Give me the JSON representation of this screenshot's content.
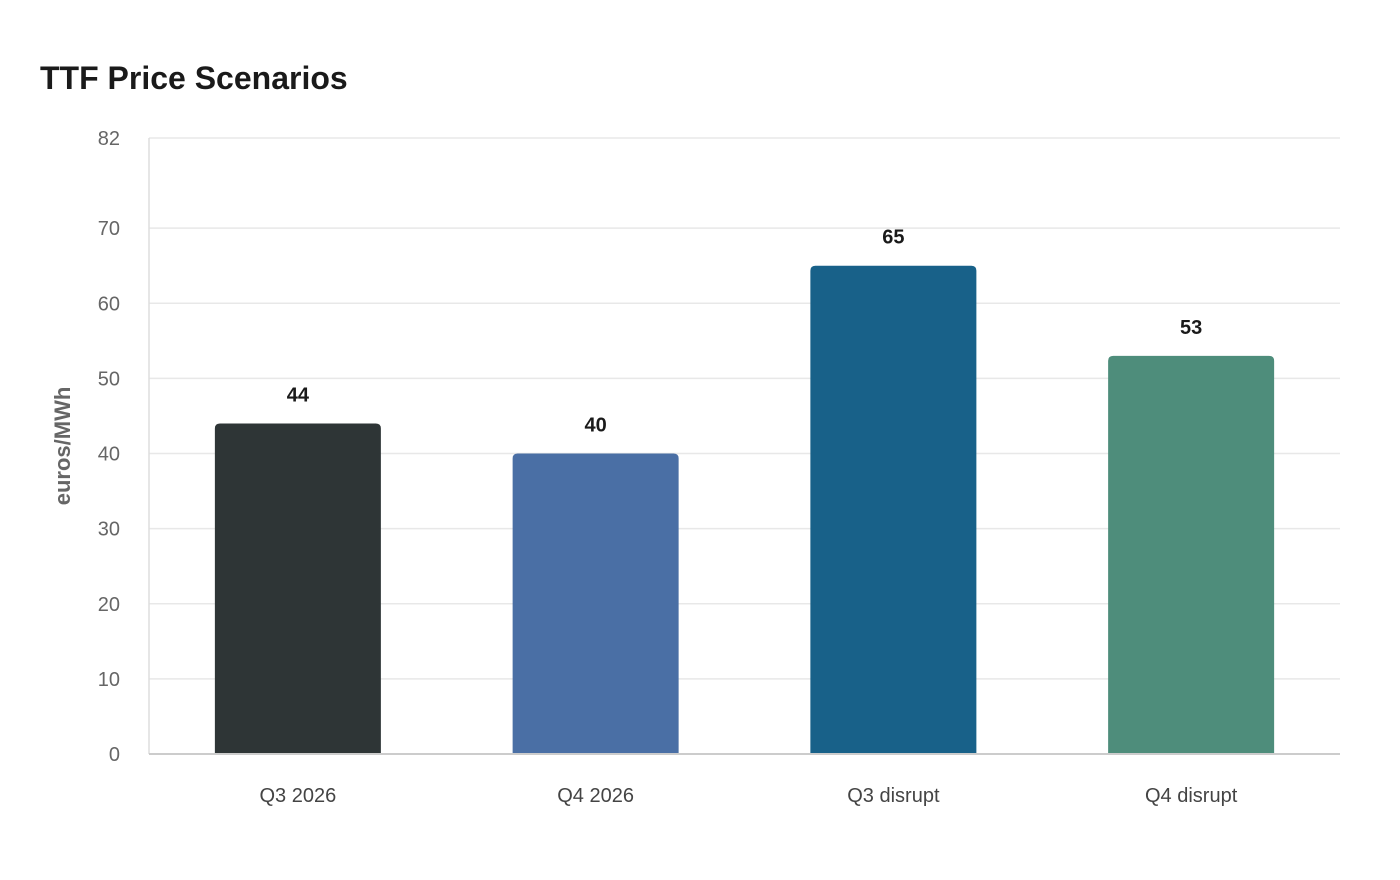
{
  "chart_data": {
    "type": "bar",
    "title": "TTF Price Scenarios",
    "xlabel": "",
    "ylabel": "euros/MWh",
    "categories": [
      "Q3 2026",
      "Q4 2026",
      "Q3 disrupt",
      "Q4 disrupt"
    ],
    "values": [
      44,
      40,
      65,
      53
    ],
    "colors": [
      "#2e3536",
      "#4a6fa5",
      "#186189",
      "#4e8d7b"
    ],
    "ylim": [
      0,
      82
    ],
    "yticks": [
      0,
      10,
      20,
      30,
      40,
      50,
      60,
      70,
      82
    ],
    "grid": true,
    "legend": "none"
  }
}
